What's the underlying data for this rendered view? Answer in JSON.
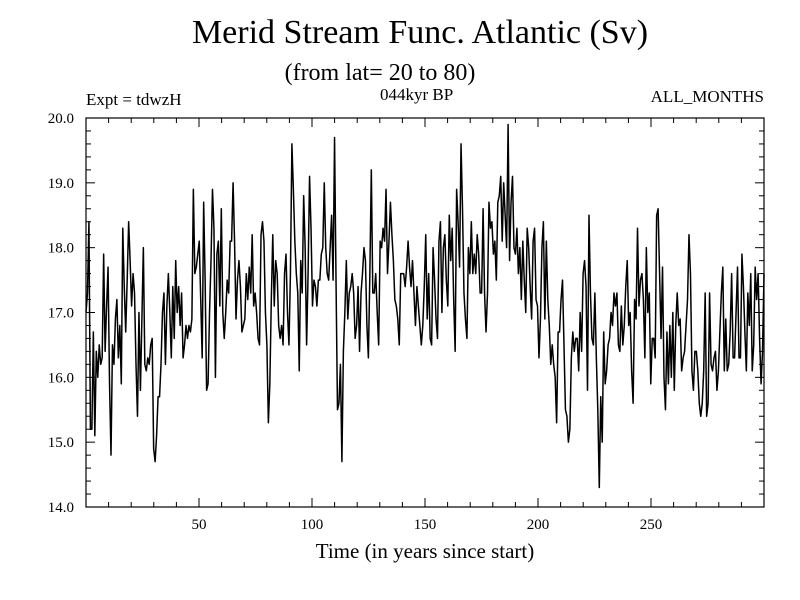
{
  "header": {
    "title": "Merid Stream Func. Atlantic (Sv)",
    "subtitle": "(from lat= 20 to 80)",
    "expt": "Expt = tdwzH",
    "period": "044kyr BP",
    "months": "ALL_MONTHS"
  },
  "chart_data": {
    "type": "line",
    "title": "Merid Stream Func. Atlantic (Sv)",
    "subtitle": "(from lat= 20 to 80)",
    "xlabel": "Time (in years since start)",
    "ylabel": "",
    "xlim": [
      0,
      300
    ],
    "ylim": [
      14.0,
      20.0
    ],
    "xticks": [
      50,
      100,
      150,
      200,
      250
    ],
    "yticks": [
      "14.0",
      "15.0",
      "16.0",
      "17.0",
      "18.0",
      "19.0",
      "20.0"
    ],
    "grid": false,
    "series": [
      {
        "values": [
          17.0,
          17.3,
          18.4,
          15.2,
          15.2,
          16.7,
          15.1,
          16.4,
          16.0,
          16.5,
          16.2,
          16.3,
          17.9,
          16.4,
          17.1,
          17.7,
          15.9,
          14.8,
          16.5,
          16.2,
          16.9,
          17.2,
          16.3,
          16.8,
          15.9,
          18.3,
          17.4,
          16.7,
          17.5,
          18.4,
          17.8,
          17.1,
          17.6,
          17.3,
          16.2,
          15.4,
          17.0,
          15.8,
          16.9,
          18.0,
          16.2,
          16.1,
          16.3,
          16.2,
          16.5,
          16.6,
          14.9,
          14.7,
          15.1,
          15.7,
          15.7,
          16.2,
          17.0,
          17.3,
          16.2,
          17.1,
          17.6,
          17.0,
          16.3,
          17.4,
          16.6,
          17.8,
          17.0,
          17.4,
          16.8,
          17.3,
          16.3,
          16.5,
          16.8,
          16.6,
          16.8,
          16.7,
          16.9,
          18.9,
          17.6,
          17.7,
          17.9,
          18.1,
          17.2,
          16.3,
          18.7,
          17.5,
          15.8,
          15.9,
          17.0,
          17.8,
          18.9,
          18.3,
          16.0,
          17.9,
          18.1,
          17.1,
          18.6,
          17.0,
          16.6,
          17.0,
          17.5,
          17.3,
          18.1,
          18.1,
          19.0,
          18.1,
          16.9,
          17.5,
          17.8,
          17.4,
          16.7,
          16.8,
          16.9,
          17.6,
          17.2,
          17.7,
          17.3,
          18.2,
          17.1,
          17.3,
          17.0,
          16.6,
          16.5,
          18.2,
          18.4,
          18.1,
          17.0,
          16.5,
          15.3,
          15.9,
          17.2,
          18.2,
          17.1,
          17.8,
          17.6,
          16.8,
          16.6,
          16.8,
          16.5,
          17.6,
          17.9,
          17.0,
          16.5,
          17.6,
          19.6,
          18.9,
          18.1,
          17.6,
          17.3,
          16.1,
          17.8,
          17.3,
          18.8,
          18.0,
          16.5,
          17.6,
          19.1,
          18.3,
          17.1,
          17.5,
          17.4,
          17.1,
          17.5,
          17.5,
          17.9,
          18.0,
          19.0,
          18.0,
          17.6,
          17.5,
          18.0,
          18.5,
          17.5,
          19.7,
          17.5,
          15.5,
          15.6,
          16.2,
          14.7,
          16.4,
          17.0,
          17.8,
          16.9,
          17.3,
          17.4,
          17.6,
          17.3,
          16.6,
          16.8,
          17.4,
          16.4,
          17.3,
          17.6,
          18.0,
          17.8,
          16.8,
          16.3,
          17.6,
          19.2,
          17.3,
          17.3,
          17.6,
          17.0,
          16.5,
          18.1,
          18.0,
          18.3,
          18.1,
          18.9,
          17.6,
          18.1,
          18.7,
          18.2,
          17.8,
          17.2,
          17.1,
          16.9,
          16.5,
          17.6,
          17.6,
          17.6,
          17.4,
          17.7,
          18.1,
          17.7,
          17.4,
          17.8,
          17.3,
          16.8,
          17.4,
          17.1,
          16.8,
          16.5,
          16.8,
          17.4,
          18.2,
          16.9,
          17.6,
          16.6,
          16.5,
          18.0,
          17.5,
          16.9,
          16.6,
          18.1,
          18.4,
          17.0,
          18.0,
          18.2,
          17.5,
          17.1,
          18.5,
          17.8,
          18.3,
          17.2,
          16.4,
          18.9,
          18.4,
          17.7,
          19.6,
          18.6,
          17.3,
          16.9,
          16.6,
          18.0,
          17.6,
          18.4,
          17.6,
          17.9,
          17.6,
          18.2,
          17.9,
          17.3,
          17.3,
          18.6,
          17.3,
          16.7,
          17.3,
          18.7,
          18.3,
          18.4,
          17.9,
          18.1,
          17.5,
          18.7,
          18.8,
          19.1,
          18.1,
          19.0,
          18.5,
          18.0,
          19.9,
          17.8,
          18.7,
          19.1,
          18.0,
          17.9,
          18.3,
          17.6,
          18.0,
          17.2,
          18.1,
          17.5,
          17.0,
          18.3,
          18.0,
          17.4,
          16.9,
          18.1,
          18.3,
          17.2,
          17.1,
          16.3,
          16.9,
          18.0,
          18.4,
          16.9,
          18.1,
          17.2,
          16.8,
          16.2,
          16.5,
          16.2,
          16.0,
          15.3,
          16.7,
          16.7,
          17.2,
          17.5,
          16.5,
          15.5,
          15.4,
          15.0,
          15.2,
          16.3,
          16.7,
          16.4,
          16.6,
          16.6,
          16.1,
          17.0,
          16.4,
          17.6,
          17.8,
          17.4,
          15.8,
          18.5,
          17.3,
          16.6,
          16.5,
          17.3,
          16.3,
          15.5,
          14.3,
          15.7,
          15.0,
          16.7,
          15.9,
          16.1,
          16.5,
          16.6,
          17.0,
          16.8,
          17.3,
          17.1,
          17.3,
          16.5,
          16.4,
          17.1,
          16.5,
          16.8,
          17.4,
          17.8,
          16.8,
          17.0,
          16.1,
          15.6,
          17.2,
          16.9,
          18.3,
          17.1,
          17.5,
          17.6,
          17.2,
          16.3,
          18.0,
          17.0,
          17.3,
          15.9,
          16.6,
          16.6,
          16.3,
          18.5,
          18.6,
          17.6,
          16.6,
          17.7,
          16.0,
          15.5,
          16.7,
          15.9,
          16.8,
          16.0,
          17.0,
          15.8,
          16.8,
          17.3,
          16.8,
          16.9,
          16.1,
          16.3,
          16.4,
          16.8,
          17.2,
          18.2,
          17.6,
          16.1,
          15.8,
          16.4,
          16.4,
          16.1,
          15.6,
          15.4,
          15.6,
          16.1,
          17.3,
          15.4,
          15.6,
          17.3,
          16.2,
          16.1,
          16.3,
          16.4,
          15.8,
          16.1,
          16.7,
          17.3,
          17.7,
          16.1,
          16.9,
          16.1,
          16.2,
          16.7,
          17.6,
          16.3,
          16.3,
          17.0,
          17.7,
          16.3,
          16.3,
          17.9,
          17.4,
          16.7,
          16.1,
          17.3,
          16.8,
          17.6,
          16.1,
          16.5,
          17.7,
          17.2,
          17.6,
          16.6,
          15.9,
          16.4,
          17.6
        ]
      }
    ]
  }
}
